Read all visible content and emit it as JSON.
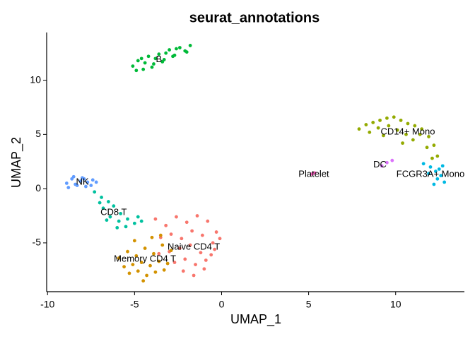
{
  "chart_data": {
    "type": "scatter",
    "title": "seurat_annotations",
    "x_label": "UMAP_1",
    "y_label": "UMAP_2",
    "xlim": [
      -10.05,
      13.95
    ],
    "ylim": [
      -9.5,
      14.4
    ],
    "xticks": [
      -10,
      -5,
      0,
      5,
      10
    ],
    "yticks": [
      -5,
      0,
      5,
      10
    ],
    "grid": false,
    "series": [
      {
        "name": "Naive CD4 T",
        "color": "#F8766D",
        "label_x": -1.6,
        "label_y": -5.4,
        "x": [
          -3.8,
          -3.2,
          -2.6,
          -2.0,
          -1.4,
          -0.8,
          -0.3,
          -3.5,
          -2.9,
          -2.3,
          -1.7,
          -1.1,
          -0.5,
          -0.1,
          -3.0,
          -2.4,
          -1.8,
          -1.2,
          -0.6,
          -2.7,
          -2.1,
          -1.5,
          -0.9,
          -2.2,
          -1.0,
          -1.6,
          -3.6,
          -0.4
        ],
        "y": [
          -2.8,
          -3.4,
          -2.6,
          -3.1,
          -2.5,
          -3.0,
          -4.0,
          -4.5,
          -4.2,
          -4.6,
          -3.9,
          -4.3,
          -5.0,
          -4.6,
          -5.8,
          -5.5,
          -5.2,
          -5.9,
          -6.1,
          -6.8,
          -6.5,
          -7.0,
          -6.6,
          -7.6,
          -7.4,
          -8.0,
          -6.0,
          -5.6
        ]
      },
      {
        "name": "Memory CD4 T",
        "color": "#D39200",
        "label_x": -4.4,
        "label_y": -6.5,
        "x": [
          -5.9,
          -5.4,
          -4.9,
          -4.4,
          -3.9,
          -3.4,
          -2.9,
          -5.6,
          -5.1,
          -4.6,
          -4.1,
          -3.6,
          -3.1,
          -5.3,
          -4.8,
          -4.3,
          -3.8,
          -3.3,
          -4.5,
          -4.0,
          -5.0,
          -3.5
        ],
        "y": [
          -6.4,
          -5.8,
          -6.2,
          -5.5,
          -6.0,
          -5.2,
          -5.7,
          -7.2,
          -7.0,
          -6.8,
          -7.1,
          -6.7,
          -6.9,
          -7.8,
          -7.6,
          -8.0,
          -7.7,
          -7.5,
          -8.5,
          -4.5,
          -4.8,
          -4.3
        ]
      },
      {
        "name": "CD14+ Mono",
        "color": "#93AA00",
        "label_x": 10.7,
        "label_y": 5.2,
        "x": [
          7.9,
          8.3,
          8.7,
          9.1,
          9.5,
          9.9,
          10.3,
          10.7,
          11.1,
          11.5,
          11.9,
          12.2,
          12.4,
          8.5,
          9.0,
          9.6,
          10.1,
          10.6,
          11.0,
          11.4,
          11.8,
          12.1,
          9.3,
          10.4
        ],
        "y": [
          5.5,
          5.9,
          6.1,
          6.3,
          6.5,
          6.6,
          6.3,
          6.0,
          5.8,
          5.5,
          4.8,
          4.0,
          3.0,
          5.2,
          5.6,
          5.8,
          5.4,
          5.0,
          4.5,
          5.0,
          3.8,
          2.8,
          4.9,
          4.2
        ]
      },
      {
        "name": "B",
        "color": "#00BA38",
        "label_x": -3.6,
        "label_y": 11.9,
        "x": [
          -5.1,
          -4.8,
          -4.5,
          -4.2,
          -3.9,
          -3.6,
          -3.3,
          -3.0,
          -2.7,
          -2.4,
          -2.1,
          -1.8,
          -4.9,
          -4.4,
          -3.8,
          -3.2,
          -2.6,
          -2.0,
          -4.6,
          -4.0,
          -3.4,
          -2.8
        ],
        "y": [
          11.3,
          11.8,
          11.0,
          12.2,
          11.5,
          12.4,
          11.9,
          12.8,
          12.3,
          13.0,
          12.7,
          13.2,
          10.9,
          11.6,
          12.0,
          12.5,
          12.9,
          12.6,
          12.0,
          11.2,
          11.7,
          12.2
        ]
      },
      {
        "name": "CD8 T",
        "color": "#00C19F",
        "label_x": -6.2,
        "label_y": -2.2,
        "x": [
          -7.3,
          -6.9,
          -6.5,
          -6.8,
          -6.2,
          -5.8,
          -6.4,
          -5.9,
          -5.4,
          -5.0,
          -4.6,
          -6.0,
          -5.5,
          -4.8,
          -7.0,
          -6.6
        ],
        "y": [
          -0.3,
          -0.8,
          -1.2,
          -1.8,
          -1.6,
          -2.3,
          -2.6,
          -3.0,
          -2.8,
          -3.2,
          -3.0,
          -3.6,
          -3.5,
          -2.6,
          -1.3,
          -2.9
        ]
      },
      {
        "name": "FCGR3A+ Mono",
        "color": "#00B9E3",
        "label_x": 12.0,
        "label_y": 1.3,
        "x": [
          11.6,
          12.0,
          12.3,
          12.6,
          12.8,
          11.9,
          12.4,
          12.7,
          12.2,
          12.5
        ],
        "y": [
          2.3,
          2.0,
          1.6,
          1.2,
          0.6,
          1.4,
          0.9,
          2.1,
          0.4,
          1.8
        ]
      },
      {
        "name": "NK",
        "color": "#619CFF",
        "label_x": -8.0,
        "label_y": 0.6,
        "x": [
          -8.9,
          -8.6,
          -8.3,
          -8.0,
          -7.7,
          -7.4,
          -8.8,
          -8.4,
          -8.1,
          -7.8,
          -7.5,
          -7.2,
          -8.5,
          -7.9
        ],
        "y": [
          0.5,
          0.9,
          0.3,
          1.0,
          0.6,
          0.8,
          0.1,
          0.4,
          0.7,
          0.2,
          0.3,
          0.6,
          1.1,
          0.9
        ]
      },
      {
        "name": "DC",
        "color": "#DB72FB",
        "label_x": 9.1,
        "label_y": 2.2,
        "x": [
          9.2,
          9.5,
          9.8
        ],
        "y": [
          2.1,
          2.4,
          2.6
        ]
      },
      {
        "name": "Platelet",
        "color": "#FF61C3",
        "label_x": 5.3,
        "label_y": 1.3,
        "x": [
          5.2,
          5.35
        ],
        "y": [
          1.35,
          1.45
        ]
      }
    ]
  }
}
